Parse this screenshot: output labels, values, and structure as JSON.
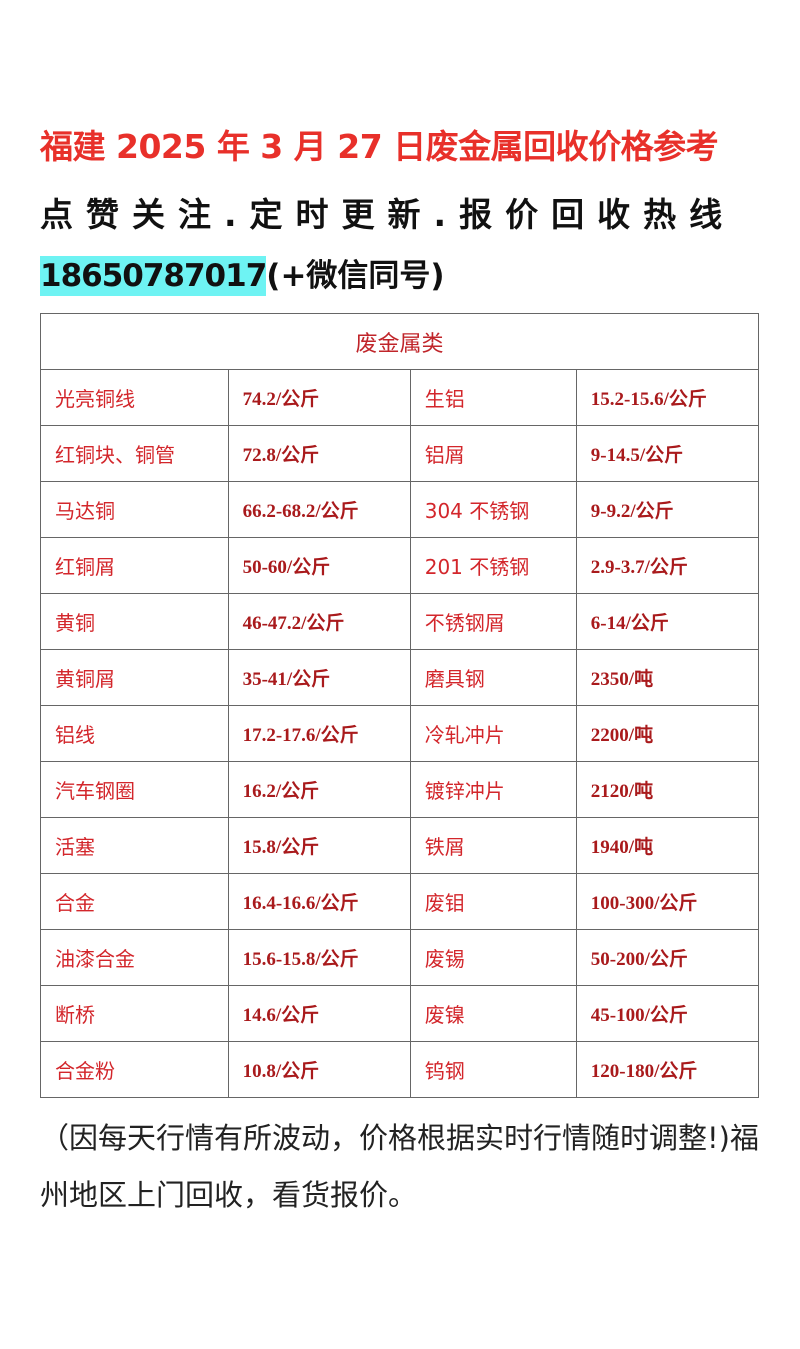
{
  "title": "福建 2025 年 3 月 27 日废金属回收价格参考",
  "subtitle": "点赞关注.定时更新.报价回收热线",
  "phone": "18650787017",
  "phone_suffix": "(+微信同号)",
  "table": {
    "header": "废金属类",
    "rows": [
      [
        "光亮铜线",
        "74.2/公斤",
        "生铝",
        "15.2-15.6/公斤"
      ],
      [
        "红铜块、铜管",
        "72.8/公斤",
        "铝屑",
        "9-14.5/公斤"
      ],
      [
        "马达铜",
        "66.2-68.2/公斤",
        "304 不锈钢",
        "9-9.2/公斤"
      ],
      [
        "红铜屑",
        "50-60/公斤",
        "201 不锈钢",
        "2.9-3.7/公斤"
      ],
      [
        "黄铜",
        "46-47.2/公斤",
        "不锈钢屑",
        "6-14/公斤"
      ],
      [
        "黄铜屑",
        "35-41/公斤",
        "磨具钢",
        "2350/吨"
      ],
      [
        "铝线",
        "17.2-17.6/公斤",
        "冷轧冲片",
        "2200/吨"
      ],
      [
        "汽车钢圈",
        "16.2/公斤",
        "镀锌冲片",
        "2120/吨"
      ],
      [
        "活塞",
        "15.8/公斤",
        "铁屑",
        "1940/吨"
      ],
      [
        "合金",
        "16.4-16.6/公斤",
        "废钼",
        "100-300/公斤"
      ],
      [
        "油漆合金",
        "15.6-15.8/公斤",
        "废锡",
        "50-200/公斤"
      ],
      [
        "断桥",
        "14.6/公斤",
        "废镍",
        "45-100/公斤"
      ],
      [
        "合金粉",
        "10.8/公斤",
        "钨钢",
        "120-180/公斤"
      ]
    ]
  },
  "note": "（因每天行情有所波动，价格根据实时行情随时调整!)福州地区上门回收，看货报价。",
  "colors": {
    "title": "#e8302a",
    "phone_highlight": "#6ef3f3",
    "table_text": "#d3262b"
  }
}
